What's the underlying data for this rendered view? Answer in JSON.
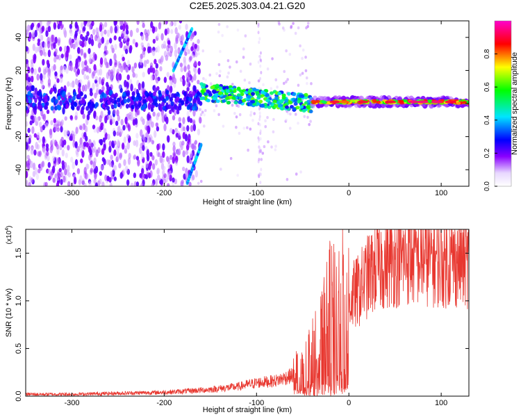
{
  "chart_data": [
    {
      "type": "heatmap",
      "title": "C2E5.2025.303.04.21.G20",
      "xlabel": "Height of straight line (km)",
      "ylabel": "Frequency (Hz)",
      "xlim": [
        -350,
        130
      ],
      "ylim": [
        -50,
        50
      ],
      "x_ticks": [
        -300,
        -200,
        -100,
        0,
        100
      ],
      "x_tick_labels": [
        "-300",
        "-200",
        "-100",
        "0",
        "100"
      ],
      "y_ticks": [
        -40,
        -20,
        0,
        20,
        40
      ],
      "y_tick_labels": [
        "-40",
        "-20",
        "0",
        "20",
        "40"
      ],
      "colorbar": {
        "label": "Normalized spectral amplitude",
        "range": [
          0,
          1
        ],
        "ticks": [
          0.0,
          0.2,
          0.4,
          0.6,
          0.8
        ],
        "tick_labels": [
          "0.0",
          "0.2",
          "0.4",
          "0.6",
          "0.8"
        ],
        "colors": [
          "#ffffff",
          "#7b00ff",
          "#0000ff",
          "#00ffff",
          "#00ff00",
          "#ffff00",
          "#ff0000",
          "#ff00ff"
        ]
      },
      "features": [
        {
          "name": "main-band",
          "x_start": -40,
          "x_end": 130,
          "freq": 1,
          "amplitude": 0.95
        },
        {
          "name": "mid-band",
          "x_start": -160,
          "x_end": -40,
          "freq": 3,
          "amplitude": 0.5
        },
        {
          "name": "noise-band",
          "x_start": -350,
          "x_end": -160,
          "freq": 2,
          "amplitude": 0.25
        },
        {
          "name": "sweep-upper",
          "x_start": -190,
          "x_end": -170,
          "freq_start": 20,
          "freq_end": 45
        },
        {
          "name": "sweep-lower",
          "x_start": -175,
          "x_end": -160,
          "freq_start": -48,
          "freq_end": -25
        }
      ]
    },
    {
      "type": "line",
      "title": "",
      "xlabel": "Height of straight line (km)",
      "ylabel": "SNR (10 * v/v)",
      "y_scale_note": "(x10",
      "y_scale_exp": "4",
      "xlim": [
        -350,
        130
      ],
      "ylim": [
        0,
        1.75
      ],
      "x_ticks": [
        -300,
        -200,
        -100,
        0,
        100
      ],
      "x_tick_labels": [
        "-300",
        "-200",
        "-100",
        "0",
        "100"
      ],
      "y_ticks": [
        0.0,
        0.5,
        1.0,
        1.5
      ],
      "y_tick_labels": [
        "0.0",
        "0.5",
        "1.0",
        "1.5"
      ],
      "line_color": "#e8372f",
      "series": [
        {
          "name": "SNR",
          "x": [
            -350,
            -300,
            -250,
            -200,
            -180,
            -150,
            -120,
            -100,
            -80,
            -60,
            -50,
            -40,
            -30,
            -25,
            -20,
            -15,
            -10,
            0,
            10,
            20,
            30,
            40,
            60,
            80,
            100,
            130
          ],
          "y": [
            0.02,
            0.02,
            0.03,
            0.04,
            0.05,
            0.07,
            0.1,
            0.14,
            0.16,
            0.22,
            0.3,
            0.45,
            0.6,
            0.75,
            0.9,
            0.85,
            0.95,
            1.0,
            1.1,
            1.25,
            1.35,
            1.4,
            1.45,
            1.45,
            1.42,
            1.42
          ]
        }
      ]
    }
  ]
}
